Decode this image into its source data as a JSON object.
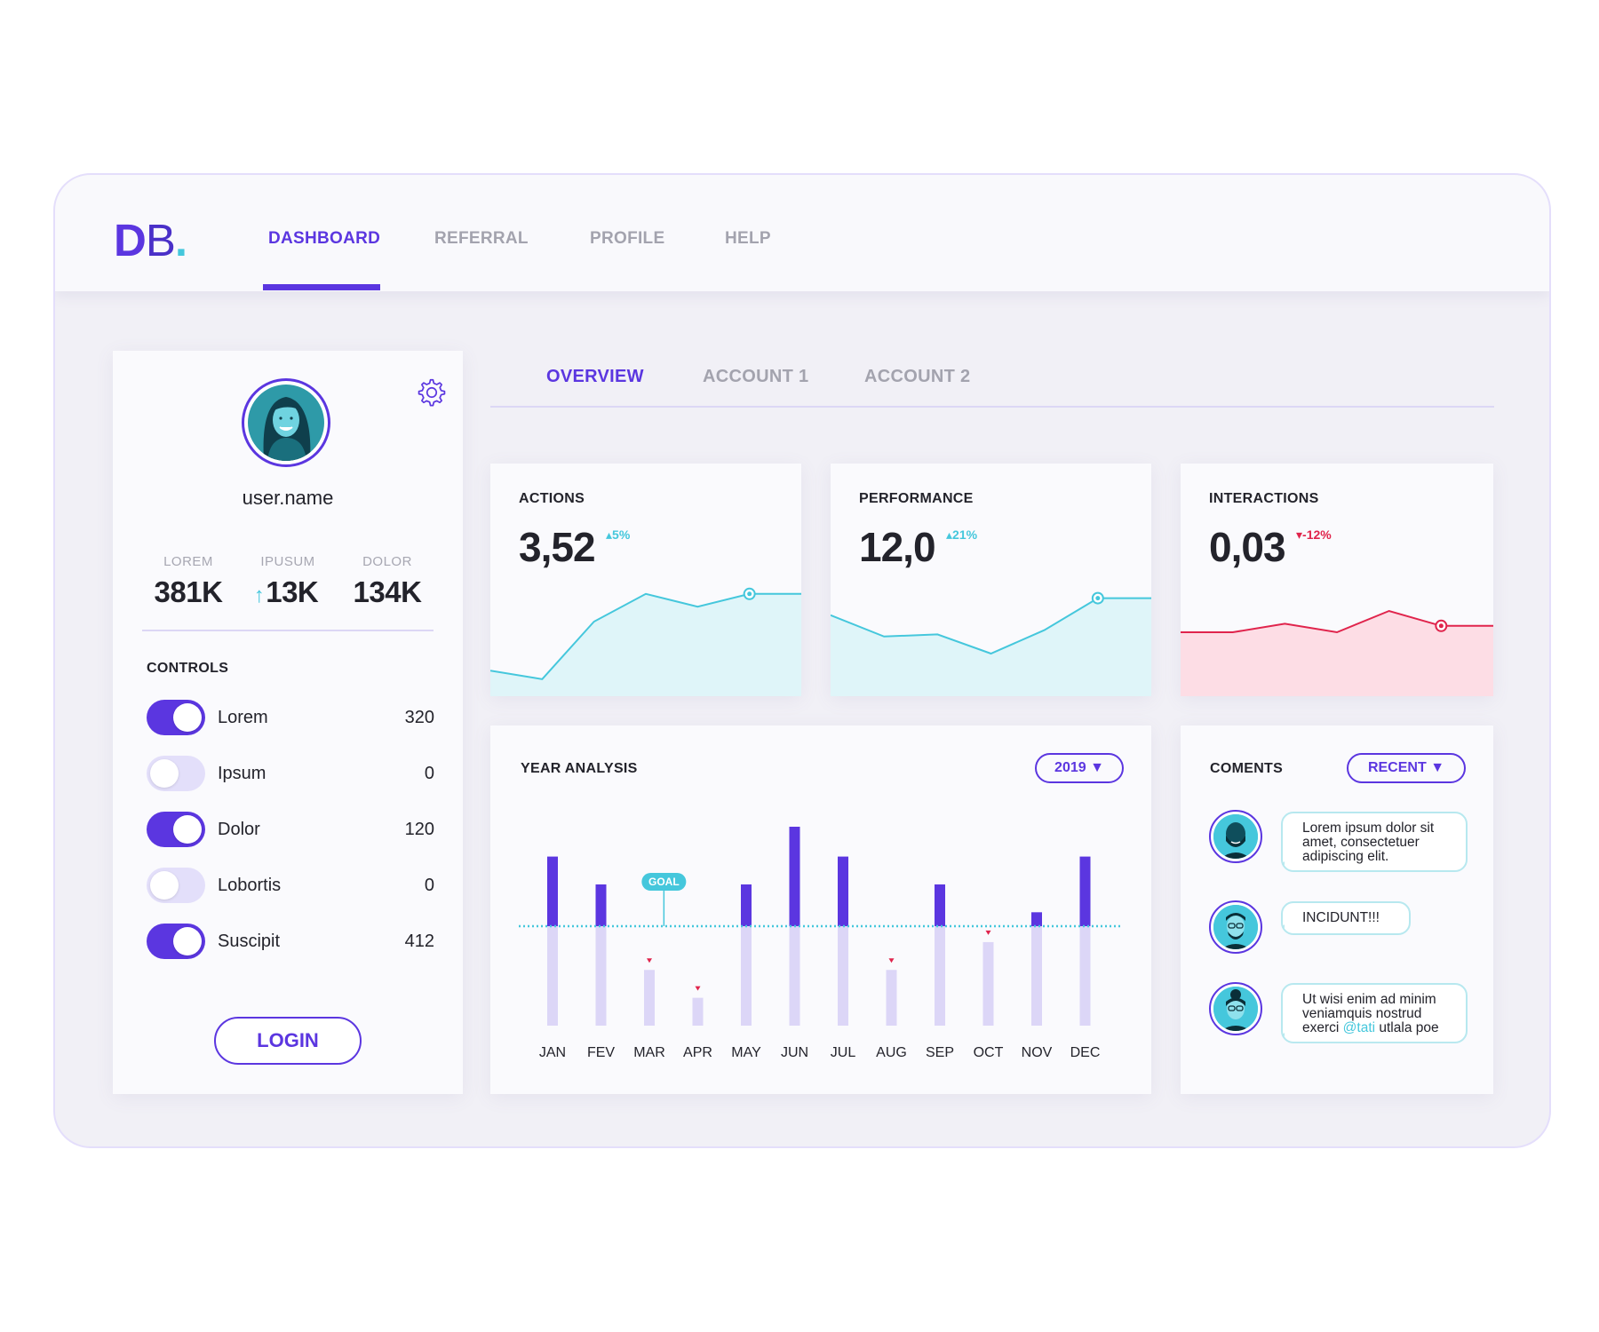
{
  "app": {
    "logo": {
      "d": "D",
      "b": "B",
      "dot": "."
    },
    "nav": [
      {
        "label": "DASHBOARD",
        "active": true
      },
      {
        "label": "REFERRAL",
        "active": false
      },
      {
        "label": "PROFILE",
        "active": false
      },
      {
        "label": "HELP",
        "active": false
      }
    ],
    "accent_color": "#5b36e0",
    "teal_color": "#45c7dc",
    "red_color": "#e0244c"
  },
  "profile": {
    "username": "user.name",
    "settings_icon": "gear-icon",
    "stats": [
      {
        "label": "LOREM",
        "value": "381K"
      },
      {
        "label": "IPUSUM",
        "value": "13K",
        "arrow": "↑"
      },
      {
        "label": "DOLOR",
        "value": "134K"
      }
    ],
    "controls_title": "CONTROLS",
    "controls": [
      {
        "label": "Lorem",
        "value": "320",
        "on": true
      },
      {
        "label": "Ipsum",
        "value": "0",
        "on": false
      },
      {
        "label": "Dolor",
        "value": "120",
        "on": true
      },
      {
        "label": "Lobortis",
        "value": "0",
        "on": false
      },
      {
        "label": "Suscipit",
        "value": "412",
        "on": true
      }
    ],
    "login_label": "LOGIN"
  },
  "subtabs": [
    {
      "label": "OVERVIEW",
      "active": true
    },
    {
      "label": "ACCOUNT 1",
      "active": false
    },
    {
      "label": "ACCOUNT 2",
      "active": false
    }
  ],
  "kpis": [
    {
      "title": "ACTIONS",
      "value": "3,52",
      "delta": "5%",
      "direction": "up",
      "color": "#45c7dc",
      "fill": "#dff5f9",
      "trend": [
        0.12,
        0.08,
        0.35,
        0.48,
        0.42,
        0.48,
        0.48
      ],
      "marker_index": 5
    },
    {
      "title": "PERFORMANCE",
      "value": "12,0",
      "delta": "21%",
      "direction": "up",
      "color": "#45c7dc",
      "fill": "#dff5f9",
      "trend": [
        0.38,
        0.28,
        0.29,
        0.2,
        0.31,
        0.46,
        0.46
      ],
      "marker_index": 5
    },
    {
      "title": "INTERACTIONS",
      "value": "0,03",
      "delta": "-12%",
      "direction": "down",
      "color": "#e0244c",
      "fill": "#fddde5",
      "trend": [
        0.3,
        0.3,
        0.34,
        0.3,
        0.4,
        0.33,
        0.33
      ],
      "marker_index": 5
    }
  ],
  "year_analysis": {
    "title": "YEAR ANALYSIS",
    "year_selected": "2019",
    "goal_label": "GOAL"
  },
  "chart_data": {
    "type": "bar",
    "title": "YEAR ANALYSIS",
    "categories": [
      "JAN",
      "FEV",
      "MAR",
      "APR",
      "MAY",
      "JUN",
      "JUL",
      "AUG",
      "SEP",
      "OCT",
      "NOV",
      "DEC"
    ],
    "goal": 100,
    "ylim": [
      0,
      200
    ],
    "series": [
      {
        "values": [
          170,
          142,
          56,
          28,
          142,
          200,
          170,
          56,
          142,
          84,
          114,
          170
        ]
      }
    ],
    "below_goal_markers": [
      "MAR",
      "APR",
      "AUG",
      "OCT"
    ]
  },
  "comments": {
    "title": "COMENTS",
    "filter_label": "RECENT",
    "items": [
      {
        "text": "Lorem ipsum dolor sit amet, consectetuer adipiscing elit."
      },
      {
        "text": "INCIDUNT!!!"
      },
      {
        "text_before": "Ut wisi enim ad minim veniamquis nostrud exerci ",
        "mention": "@tati",
        "text_after": " utlala poe"
      }
    ]
  }
}
